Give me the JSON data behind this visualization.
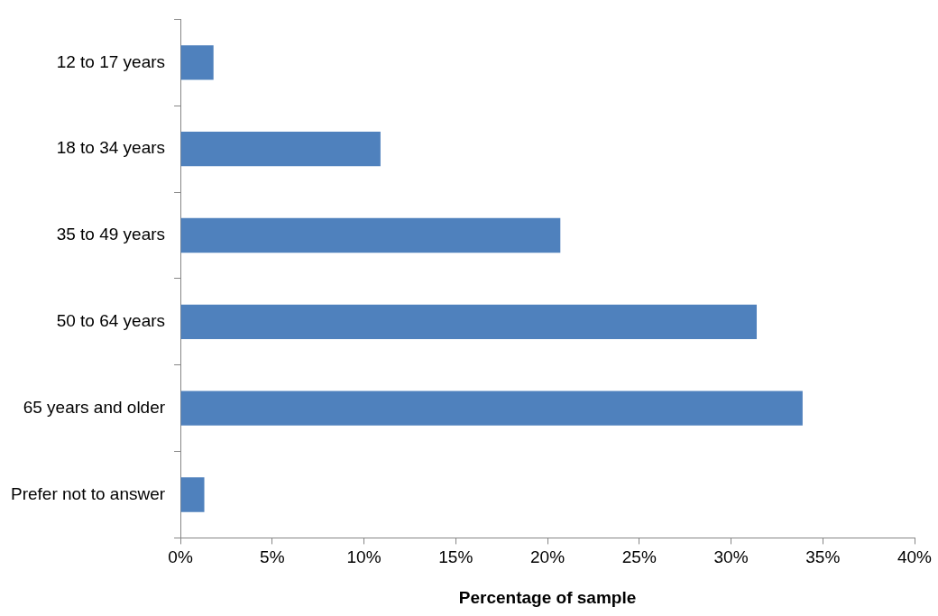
{
  "chart_data": {
    "type": "bar",
    "orientation": "horizontal",
    "xlabel": "Percentage of sample",
    "categories": [
      "12 to 17 years",
      "18 to 34 years",
      "35 to 49 years",
      "50 to 64 years",
      "65 years and older",
      "Prefer not to answer"
    ],
    "values": [
      1.8,
      10.9,
      20.7,
      31.4,
      33.9,
      1.3
    ],
    "color": "#4f81bd",
    "xlim": [
      0,
      40
    ],
    "xticks": [
      {
        "value": 0,
        "label": "0%"
      },
      {
        "value": 5,
        "label": "5%"
      },
      {
        "value": 10,
        "label": "10%"
      },
      {
        "value": 15,
        "label": "15%"
      },
      {
        "value": 20,
        "label": "20%"
      },
      {
        "value": 25,
        "label": "25%"
      },
      {
        "value": 30,
        "label": "30%"
      },
      {
        "value": 35,
        "label": "35%"
      },
      {
        "value": 40,
        "label": "40%"
      }
    ],
    "grid": false,
    "legend": false
  }
}
